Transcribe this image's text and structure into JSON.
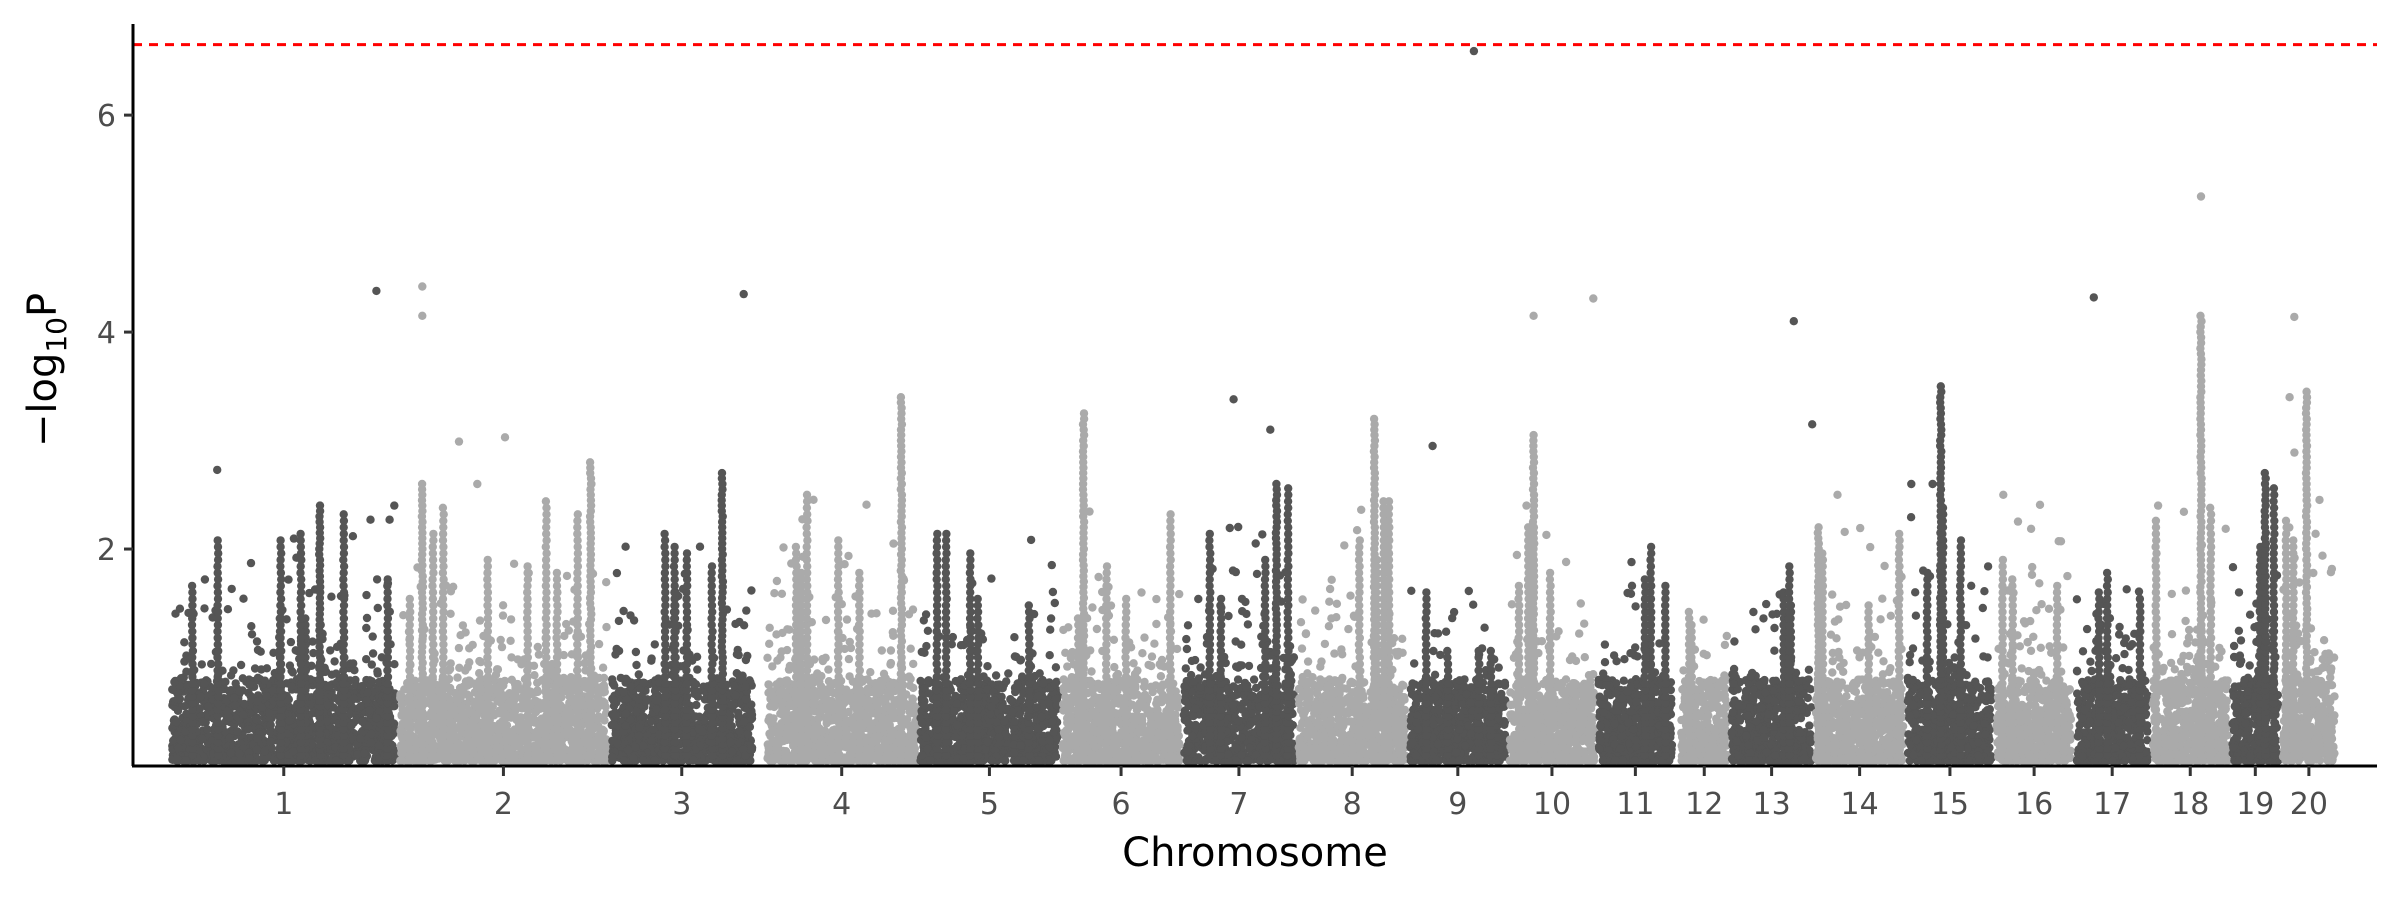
{
  "chart_data": {
    "type": "scatter",
    "subtype": "manhattan",
    "title": "",
    "xlabel": "Chromosome",
    "ylabel": {
      "prefix": "−log",
      "subscript": "10",
      "suffix": "P"
    },
    "ylim": [
      0,
      6.84
    ],
    "xlim": [
      -24,
      1442
    ],
    "x_units": "cumulative genomic position (relative)",
    "yticks": [
      2,
      4,
      6
    ],
    "grid": false,
    "legend": "none",
    "threshold": {
      "value": 6.65,
      "color": "#ff0000",
      "style": "dashed"
    },
    "colors": {
      "dark": "#555555",
      "light": "#aaaaaa"
    },
    "chromosomes": [
      {
        "label": "1",
        "start": 0,
        "end": 149,
        "color": "dark",
        "bulk_max": 2.4
      },
      {
        "label": "2",
        "start": 149,
        "end": 287,
        "color": "light",
        "bulk_max": 2.6
      },
      {
        "label": "3",
        "start": 287,
        "end": 382,
        "color": "dark",
        "bulk_max": 2.3
      },
      {
        "label": "4",
        "start": 389,
        "end": 489,
        "color": "light",
        "bulk_max": 2.6
      },
      {
        "label": "5",
        "start": 489,
        "end": 582,
        "color": "dark",
        "bulk_max": 2.2
      },
      {
        "label": "6",
        "start": 582,
        "end": 661,
        "color": "light",
        "bulk_max": 2.5
      },
      {
        "label": "7",
        "start": 661,
        "end": 736,
        "color": "dark",
        "bulk_max": 2.6
      },
      {
        "label": "8",
        "start": 736,
        "end": 809,
        "color": "light",
        "bulk_max": 2.5
      },
      {
        "label": "9",
        "start": 809,
        "end": 874,
        "color": "dark",
        "bulk_max": 1.9
      },
      {
        "label": "10",
        "start": 874,
        "end": 932,
        "color": "light",
        "bulk_max": 2.4
      },
      {
        "label": "11",
        "start": 932,
        "end": 983,
        "color": "dark",
        "bulk_max": 2.1
      },
      {
        "label": "12",
        "start": 986,
        "end": 1019,
        "color": "light",
        "bulk_max": 1.8
      },
      {
        "label": "13",
        "start": 1019,
        "end": 1074,
        "color": "dark",
        "bulk_max": 2.1
      },
      {
        "label": "14",
        "start": 1074,
        "end": 1134,
        "color": "light",
        "bulk_max": 2.5
      },
      {
        "label": "15",
        "start": 1134,
        "end": 1192,
        "color": "dark",
        "bulk_max": 2.6
      },
      {
        "label": "16",
        "start": 1192,
        "end": 1244,
        "color": "light",
        "bulk_max": 2.5
      },
      {
        "label": "17",
        "start": 1244,
        "end": 1294,
        "color": "dark",
        "bulk_max": 2.2
      },
      {
        "label": "18",
        "start": 1294,
        "end": 1346,
        "color": "light",
        "bulk_max": 2.4
      },
      {
        "label": "19",
        "start": 1346,
        "end": 1379,
        "color": "dark",
        "bulk_max": 2.7
      },
      {
        "label": "20",
        "start": 1379,
        "end": 1416,
        "color": "light",
        "bulk_max": 3.4
      }
    ],
    "towers": [
      {
        "chr": "1",
        "pos": 98,
        "top": 2.4
      },
      {
        "chr": "2",
        "pos": 165,
        "top": 2.6
      },
      {
        "chr": "2",
        "pos": 275,
        "top": 2.8
      },
      {
        "chr": "3",
        "pos": 361,
        "top": 2.7
      },
      {
        "chr": "4",
        "pos": 478,
        "top": 3.44
      },
      {
        "chr": "6",
        "pos": 597,
        "top": 3.27
      },
      {
        "chr": "7",
        "pos": 723,
        "top": 2.6
      },
      {
        "chr": "8",
        "pos": 787,
        "top": 3.2
      },
      {
        "chr": "10",
        "pos": 891,
        "top": 3.07
      },
      {
        "chr": "14",
        "pos": 1077,
        "top": 2.2
      },
      {
        "chr": "15",
        "pos": 1157,
        "top": 3.5
      },
      {
        "chr": "18",
        "pos": 1327,
        "top": 4.15
      },
      {
        "chr": "19",
        "pos": 1369,
        "top": 2.7
      },
      {
        "chr": "20",
        "pos": 1396,
        "top": 3.45
      }
    ],
    "top_hits": [
      {
        "chr": "9",
        "pos": 852,
        "value": 6.59
      },
      {
        "chr": "18",
        "pos": 1327,
        "value": 5.25
      },
      {
        "chr": "2",
        "pos": 165,
        "value": 4.42
      },
      {
        "chr": "1",
        "pos": 135,
        "value": 4.38
      },
      {
        "chr": "3",
        "pos": 375,
        "value": 4.35
      },
      {
        "chr": "17",
        "pos": 1257,
        "value": 4.32
      },
      {
        "chr": "10",
        "pos": 930,
        "value": 4.31
      },
      {
        "chr": "2",
        "pos": 165,
        "value": 4.15
      },
      {
        "chr": "10",
        "pos": 891,
        "value": 4.15
      },
      {
        "chr": "20",
        "pos": 1388,
        "value": 4.14
      },
      {
        "chr": "13",
        "pos": 1061,
        "value": 4.1
      },
      {
        "chr": "7",
        "pos": 695,
        "value": 3.38
      },
      {
        "chr": "13",
        "pos": 1073,
        "value": 3.15
      },
      {
        "chr": "7",
        "pos": 719,
        "value": 3.1
      },
      {
        "chr": "2",
        "pos": 219,
        "value": 3.03
      },
      {
        "chr": "2",
        "pos": 189,
        "value": 2.99
      },
      {
        "chr": "9",
        "pos": 825,
        "value": 2.95
      },
      {
        "chr": "1",
        "pos": 31,
        "value": 2.73
      }
    ]
  }
}
